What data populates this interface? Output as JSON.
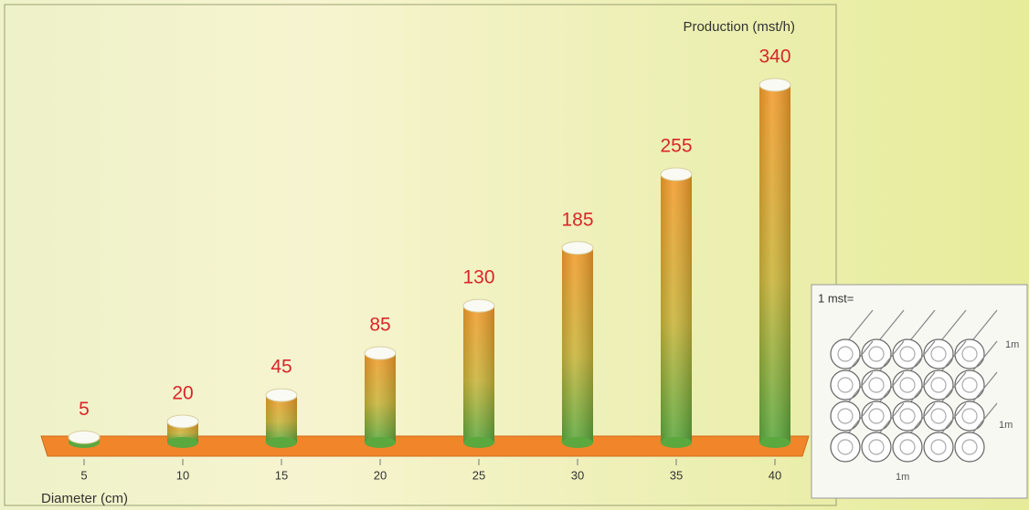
{
  "chart_data": {
    "type": "bar",
    "title": "Production (mst/h)",
    "x_label": "Diameter (cm)",
    "categories": [
      "5",
      "10",
      "15",
      "20",
      "25",
      "30",
      "35",
      "40"
    ],
    "values": [
      5,
      20,
      45,
      85,
      130,
      185,
      255,
      340
    ]
  },
  "inset": {
    "label": "1 mst=",
    "dimensions": [
      "1m",
      "1m",
      "1m"
    ]
  }
}
